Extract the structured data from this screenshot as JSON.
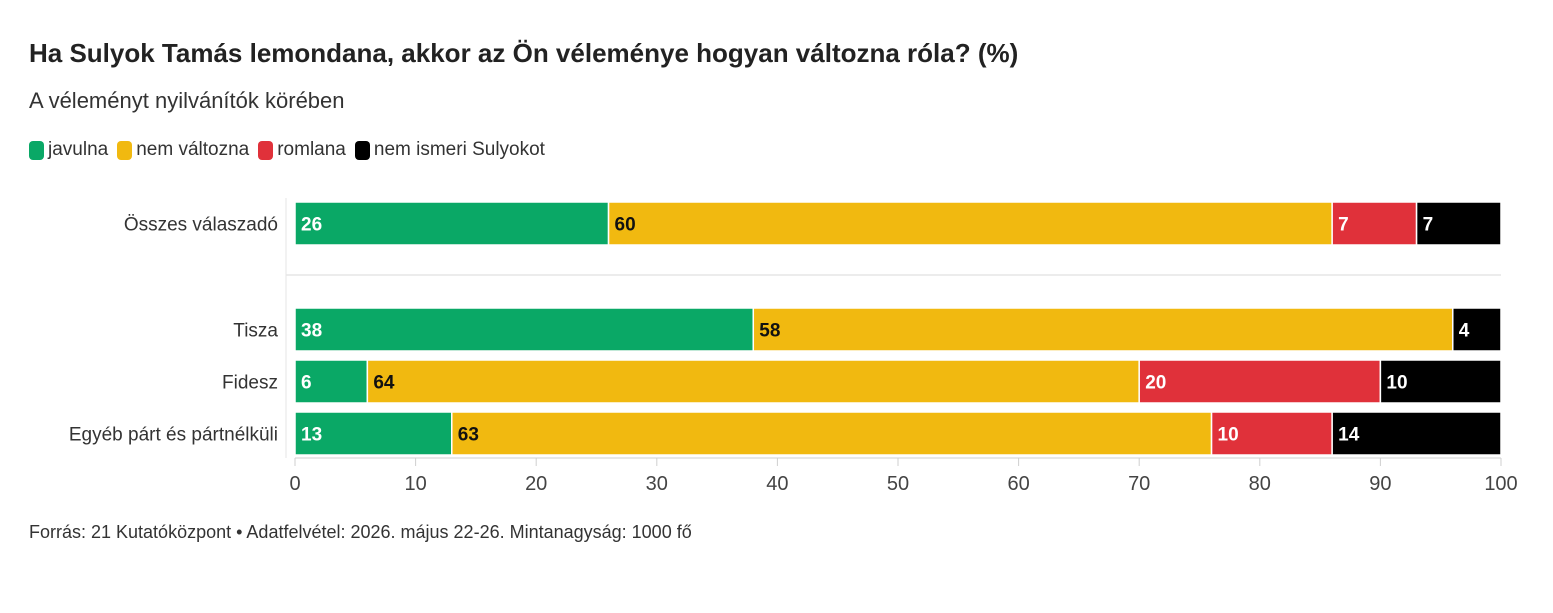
{
  "title": "Ha Sulyok Tamás lemondana, akkor az Ön véleménye hogyan változna róla? (%)",
  "subtitle": "A véleményt nyilvánítók körében",
  "legend": [
    {
      "label": "javulna",
      "color": "#0aa866"
    },
    {
      "label": "nem változna",
      "color": "#f1b910"
    },
    {
      "label": "romlana",
      "color": "#e0313a"
    },
    {
      "label": "nem ismeri Sulyokot",
      "color": "#000000"
    }
  ],
  "footer": "Forrás: 21 Kutatóközpont • Adatfelvétel: 2026. május 22-26. Mintanagyság: 1000 fő",
  "chart_data": {
    "type": "bar",
    "orientation": "horizontal",
    "stacked": true,
    "categories": [
      "Összes válaszadó",
      "Tisza",
      "Fidesz",
      "Egyéb párt és pártnélküli"
    ],
    "series": [
      {
        "name": "javulna",
        "color": "#0aa866",
        "label_color": "#ffffff",
        "values": [
          26,
          38,
          6,
          13
        ]
      },
      {
        "name": "nem változna",
        "color": "#f1b910",
        "label_color": "#111111",
        "values": [
          60,
          58,
          64,
          63
        ]
      },
      {
        "name": "romlana",
        "color": "#e0313a",
        "label_color": "#ffffff",
        "values": [
          7,
          0,
          20,
          10
        ]
      },
      {
        "name": "nem ismeri Sulyokot",
        "color": "#000000",
        "label_color": "#ffffff",
        "values": [
          7,
          4,
          10,
          14
        ]
      }
    ],
    "xlim": [
      0,
      100
    ],
    "xticks": [
      0,
      10,
      20,
      30,
      40,
      50,
      60,
      70,
      80,
      90,
      100
    ],
    "xlabel": "",
    "ylabel": ""
  }
}
